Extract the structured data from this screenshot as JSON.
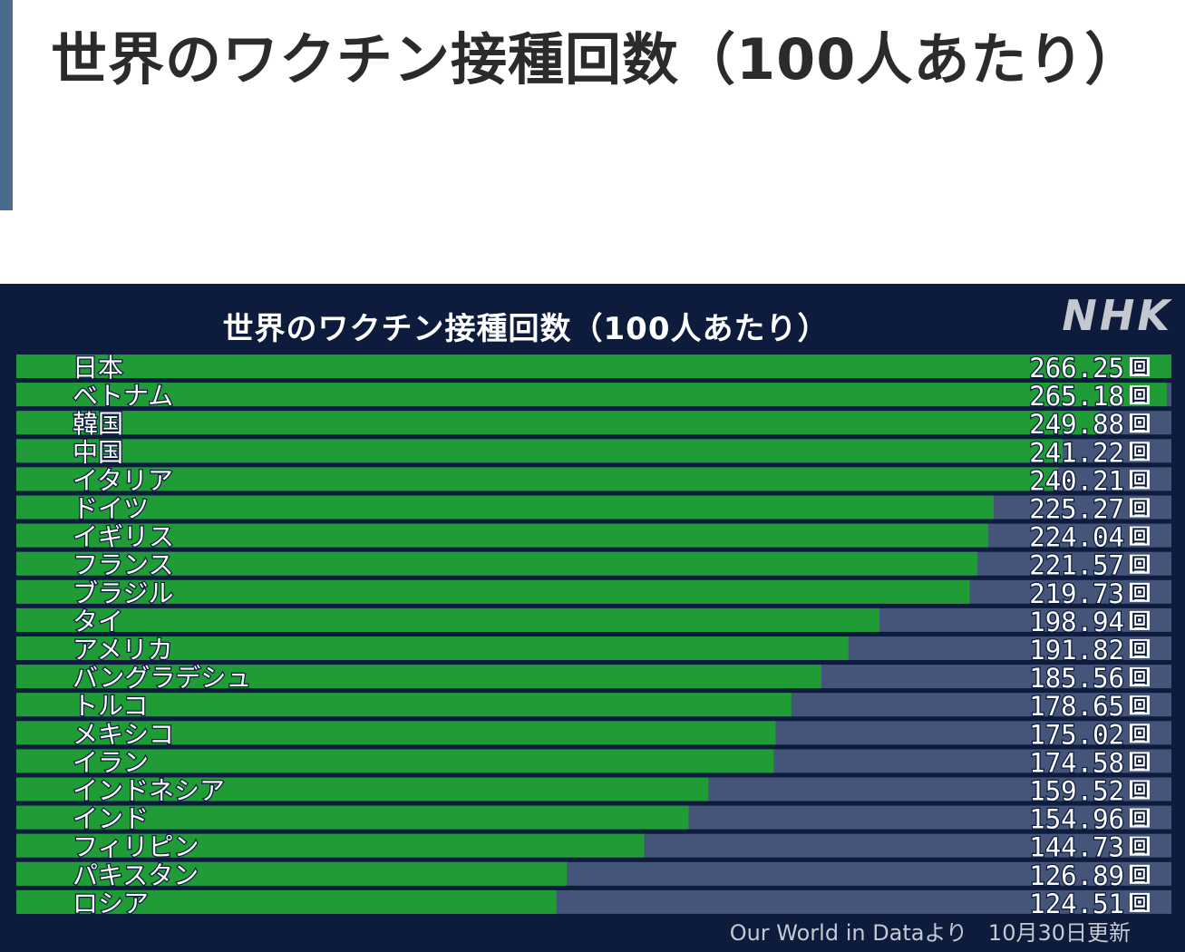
{
  "heading": {
    "title": "世界のワクチン接種回数（100人あたり）"
  },
  "chart_data": {
    "type": "bar",
    "orientation": "horizontal",
    "title": "世界のワクチン接種回数（100人あたり）",
    "logo": "NHK",
    "unit": "回",
    "categories": [
      "日本",
      "ベトナム",
      "韓国",
      "中国",
      "イタリア",
      "ドイツ",
      "イギリス",
      "フランス",
      "ブラジル",
      "タイ",
      "アメリカ",
      "バングラデシュ",
      "トルコ",
      "メキシコ",
      "イラン",
      "インドネシア",
      "インド",
      "フィリピン",
      "パキスタン",
      "ロシア"
    ],
    "values": [
      266.25,
      265.18,
      249.88,
      241.22,
      240.21,
      225.27,
      224.04,
      221.57,
      219.73,
      198.94,
      191.82,
      185.56,
      178.65,
      175.02,
      174.58,
      159.52,
      154.96,
      144.73,
      126.89,
      124.51
    ],
    "value_labels": [
      "266.25",
      "265.18",
      "249.88",
      "241.22",
      "240.21",
      "225.27",
      "224.04",
      "221.57",
      "219.73",
      "198.94",
      "191.82",
      "185.56",
      "178.65",
      "175.02",
      "174.58",
      "159.52",
      "154.96",
      "144.73",
      "126.89",
      "124.51"
    ],
    "xlim": [
      0,
      266.25
    ],
    "source": "Our World in Dataより",
    "updated": "10月30日更新",
    "colors": {
      "bar": "#1f9c35",
      "track": "#45557a",
      "background": "#0d1b3d"
    }
  }
}
